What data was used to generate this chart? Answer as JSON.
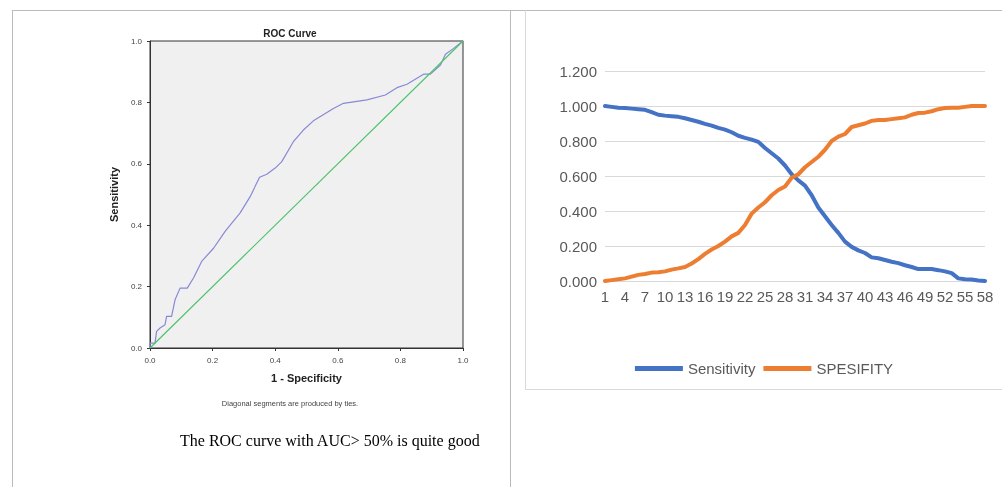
{
  "chart_data": [
    {
      "type": "line",
      "title": "ROC Curve",
      "xlabel": "1 - Specificity",
      "ylabel": "Sensitivity",
      "annotations": [
        "Diagonal segments are produced by ties.",
        "The ROC curve with AUC> 50% is quite good"
      ],
      "xlim": [
        0,
        1
      ],
      "ylim": [
        0,
        1
      ],
      "xticks": [
        {
          "value": 0,
          "label": "0.0"
        },
        {
          "value": 0.2,
          "label": "0.2"
        },
        {
          "value": 0.4,
          "label": "0.4"
        },
        {
          "value": 0.6,
          "label": "0.6"
        },
        {
          "value": 0.8,
          "label": "0.8"
        },
        {
          "value": 1,
          "label": "1.0"
        }
      ],
      "yticks": [
        {
          "value": 0,
          "label": "0.0"
        },
        {
          "value": 0.2,
          "label": "0.2"
        },
        {
          "value": 0.4,
          "label": "0.4"
        },
        {
          "value": 0.6,
          "label": "0.6"
        },
        {
          "value": 0.8,
          "label": "0.8"
        },
        {
          "value": 1,
          "label": "1.0"
        }
      ],
      "grid": false,
      "legend": false,
      "marker": "none",
      "line_style": "solid",
      "series": [
        {
          "color": "#8888d8",
          "x": [
            0,
            0,
            0.016,
            0.021,
            0.032,
            0.048,
            0.053,
            0.069,
            0.08,
            0.096,
            0.119,
            0.139,
            0.165,
            0.203,
            0.24,
            0.288,
            0.32,
            0.35,
            0.373,
            0.4,
            0.421,
            0.458,
            0.49,
            0.522,
            0.586,
            0.618,
            0.693,
            0.752,
            0.789,
            0.821,
            0.874,
            0.896,
            0.928,
            0.944,
            0.97,
            1
          ],
          "values": [
            0,
            0.016,
            0.016,
            0.054,
            0.065,
            0.076,
            0.103,
            0.103,
            0.157,
            0.195,
            0.195,
            0.228,
            0.282,
            0.325,
            0.38,
            0.44,
            0.493,
            0.556,
            0.566,
            0.586,
            0.607,
            0.672,
            0.71,
            0.74,
            0.78,
            0.797,
            0.808,
            0.824,
            0.848,
            0.859,
            0.892,
            0.892,
            0.922,
            0.957,
            0.976,
            1
          ]
        },
        {
          "color": "#4ec36b",
          "x": [
            0,
            1
          ],
          "values": [
            0,
            1
          ]
        }
      ]
    },
    {
      "type": "line",
      "categories": [
        "1",
        null,
        null,
        "4",
        null,
        null,
        "7",
        null,
        null,
        "10",
        null,
        null,
        "13",
        null,
        null,
        "16",
        null,
        null,
        "19",
        null,
        null,
        "22",
        null,
        null,
        "25",
        null,
        null,
        "28",
        null,
        null,
        "31",
        null,
        null,
        "34",
        null,
        null,
        "37",
        null,
        null,
        "40",
        null,
        null,
        "43",
        null,
        null,
        "46",
        null,
        null,
        "49",
        null,
        null,
        "52",
        null,
        null,
        "55",
        null,
        null,
        "58"
      ],
      "ylim": [
        0,
        1.2
      ],
      "yticks": [
        {
          "value": 0,
          "label": "0.000"
        },
        {
          "value": 0.2,
          "label": "0.200"
        },
        {
          "value": 0.4,
          "label": "0.400"
        },
        {
          "value": 0.6,
          "label": "0.600"
        },
        {
          "value": 0.8,
          "label": "0.800"
        },
        {
          "value": 1,
          "label": "1.000"
        },
        {
          "value": 1.2,
          "label": "1.200"
        }
      ],
      "grid": "y",
      "legend": "bottom",
      "marker": "none",
      "line_style": "solid",
      "series": [
        {
          "name": "Sensitivity",
          "color": "#4472c4",
          "values": [
            1,
            0.995,
            0.99,
            0.988,
            0.985,
            0.982,
            0.978,
            0.965,
            0.95,
            0.945,
            0.942,
            0.938,
            0.93,
            0.92,
            0.91,
            0.898,
            0.888,
            0.875,
            0.865,
            0.85,
            0.83,
            0.818,
            0.808,
            0.795,
            0.76,
            0.73,
            0.7,
            0.66,
            0.61,
            0.575,
            0.545,
            0.49,
            0.42,
            0.37,
            0.32,
            0.275,
            0.225,
            0.195,
            0.175,
            0.16,
            0.135,
            0.13,
            0.12,
            0.11,
            0.102,
            0.09,
            0.08,
            0.068,
            0.068,
            0.068,
            0.062,
            0.055,
            0.045,
            0.015,
            0.01,
            0.008,
            0.003,
            0
          ]
        },
        {
          "name": "SPESIFITY",
          "color": "#ed7d31",
          "values": [
            0,
            0.005,
            0.01,
            0.015,
            0.025,
            0.035,
            0.04,
            0.048,
            0.05,
            0.055,
            0.065,
            0.072,
            0.08,
            0.1,
            0.125,
            0.155,
            0.18,
            0.2,
            0.225,
            0.255,
            0.275,
            0.32,
            0.385,
            0.42,
            0.45,
            0.49,
            0.52,
            0.54,
            0.59,
            0.61,
            0.65,
            0.68,
            0.71,
            0.75,
            0.8,
            0.825,
            0.84,
            0.88,
            0.89,
            0.9,
            0.915,
            0.92,
            0.92,
            0.925,
            0.93,
            0.935,
            0.95,
            0.96,
            0.962,
            0.97,
            0.982,
            0.988,
            0.99,
            0.99,
            0.995,
            1,
            1,
            1
          ]
        }
      ]
    }
  ]
}
